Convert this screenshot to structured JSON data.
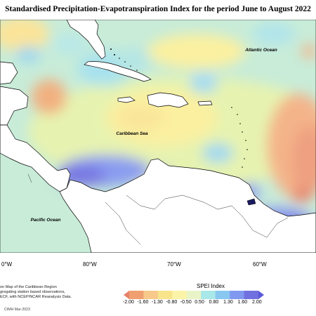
{
  "title": "Standardised Precipitation-Evapotranspiration Index for the period June to August 2022",
  "map": {
    "labels": {
      "atlantic": "Atlantic Ocean",
      "caribbean": "Caribbean Sea",
      "pacific": "Pacific Ocean"
    },
    "longitudes": [
      "80°W",
      "70°W",
      "60°W"
    ],
    "left_edge_label": "0°W"
  },
  "legend": {
    "title": "SPEI Index",
    "ticks": [
      "-2.00",
      "-1.60",
      "-1.30",
      "-0.80",
      "-0.50",
      "0.50",
      "0.80",
      "1.30",
      "1.60",
      "2.00"
    ],
    "colors": [
      "#e8806a",
      "#f0a070",
      "#f7c98a",
      "#f8e48a",
      "#fbf3a8",
      "#e8f4c8",
      "#a8e8e8",
      "#88c8f0",
      "#8098f0",
      "#7070e0",
      "#5a5ad8"
    ]
  },
  "notes": [
    "on Map of the Caribbean Region",
    "gregating station based observations,",
    "ECF, with NCEP/NCAR Reanalysis Data."
  ],
  "credit": "CIMH Mar-2023",
  "colors": {
    "background_sea": "#c8f0e0",
    "land": "#ffffff",
    "coast": "#000000"
  }
}
